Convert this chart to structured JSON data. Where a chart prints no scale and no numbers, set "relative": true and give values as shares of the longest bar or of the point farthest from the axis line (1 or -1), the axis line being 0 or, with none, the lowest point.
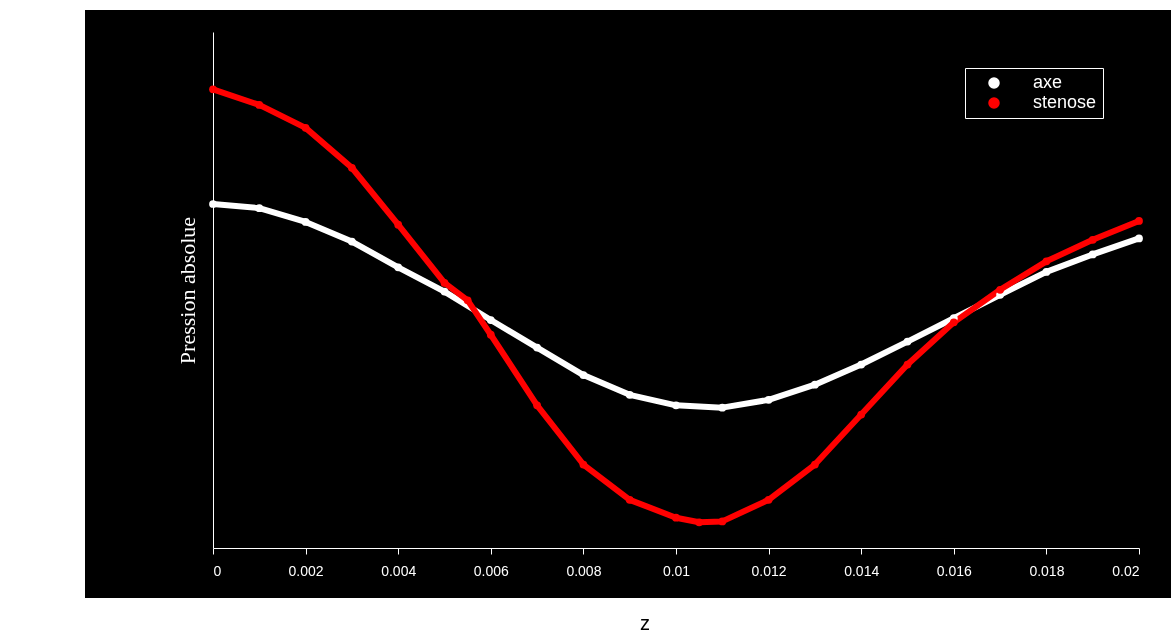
{
  "chart_data": {
    "type": "line",
    "xlabel": "z",
    "ylabel": "Pression absolue",
    "x": [
      0,
      0.001,
      0.002,
      0.003,
      0.004,
      0.005,
      0.0055,
      0.006,
      0.007,
      0.008,
      0.009,
      0.01,
      0.0105,
      0.011,
      0.012,
      0.013,
      0.014,
      0.015,
      0.016,
      0.017,
      0.018,
      0.019,
      0.02
    ],
    "series": [
      {
        "name": "axe",
        "color": "#ffffff",
        "x": [
          0,
          0.001,
          0.002,
          0.003,
          0.004,
          0.005,
          0.006,
          0.007,
          0.008,
          0.009,
          0.01,
          0.011,
          0.012,
          0.013,
          0.014,
          0.015,
          0.016,
          0.017,
          0.018,
          0.019,
          0.02
        ],
        "values": [
          0.75,
          0.741,
          0.711,
          0.668,
          0.612,
          0.559,
          0.497,
          0.437,
          0.377,
          0.334,
          0.311,
          0.306,
          0.323,
          0.356,
          0.4,
          0.45,
          0.501,
          0.552,
          0.602,
          0.64,
          0.675
        ]
      },
      {
        "name": "stenose",
        "color": "#ff0000",
        "values": [
          1,
          0.966,
          0.916,
          0.829,
          0.705,
          0.578,
          0.54,
          0.465,
          0.311,
          0.182,
          0.105,
          0.066,
          0.056,
          0.058,
          0.105,
          0.182,
          0.291,
          0.4,
          0.492,
          0.563,
          0.625,
          0.672,
          0.713
        ]
      }
    ],
    "xlim": [
      0,
      0.02
    ],
    "xticks": [
      0,
      0.002,
      0.004,
      0.006,
      0.008,
      0.01,
      0.012,
      0.014,
      0.016,
      0.018,
      0.02
    ],
    "relative": true,
    "grid": false,
    "legend": "top right",
    "marker": "circle",
    "line_style": "solid"
  }
}
